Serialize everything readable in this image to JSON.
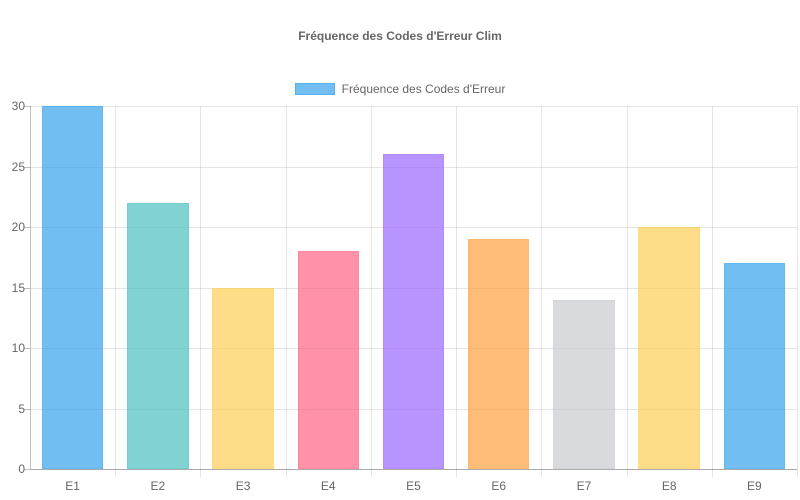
{
  "chart_data": {
    "type": "bar",
    "title": "Fréquence des Codes d'Erreur Clim",
    "xlabel": "",
    "ylabel": "",
    "categories": [
      "E1",
      "E2",
      "E3",
      "E4",
      "E5",
      "E6",
      "E7",
      "E8",
      "E9"
    ],
    "series": [
      {
        "name": "Fréquence des Codes d'Erreur",
        "values": [
          30,
          22,
          15,
          18,
          26,
          19,
          14,
          20,
          17
        ]
      }
    ],
    "ylim": [
      0,
      30
    ],
    "yticks": [
      0,
      5,
      10,
      15,
      20,
      25,
      30
    ],
    "grid": true,
    "legend_position": "top",
    "bar_colors": [
      "#36a2eb",
      "#4bc0c0",
      "#ffcd56",
      "#ff6384",
      "#9966ff",
      "#ff9f40",
      "#c9cbcf",
      "#ffcd56",
      "#36a2eb"
    ]
  },
  "title": "Fréquence des Codes d'Erreur Clim",
  "legend": {
    "label": "Fréquence des Codes d'Erreur",
    "color": "#36a2eb"
  }
}
